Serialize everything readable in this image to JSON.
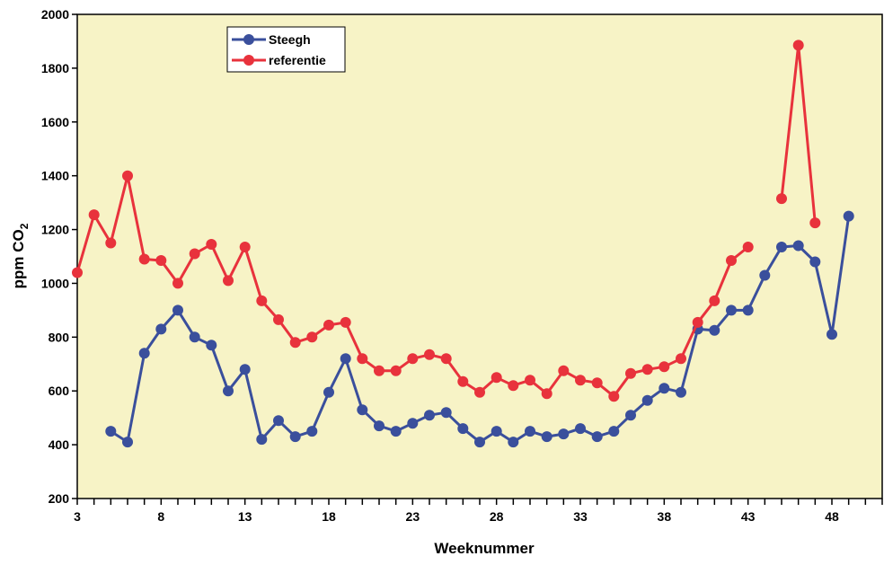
{
  "chart_data": {
    "type": "line",
    "title": "",
    "xlabel": "Weeknummer",
    "ylabel_main": "ppm CO",
    "ylabel_sub": "2",
    "xlim": [
      3,
      51
    ],
    "ylim": [
      200,
      2000
    ],
    "x_ticks": [
      3,
      8,
      13,
      18,
      23,
      28,
      33,
      38,
      43,
      48
    ],
    "x_tick_labels": [
      "3",
      "8",
      "13",
      "18",
      "23",
      "28",
      "33",
      "38",
      "43",
      "48"
    ],
    "y_ticks": [
      200,
      400,
      600,
      800,
      1000,
      1200,
      1400,
      1600,
      1800,
      2000
    ],
    "y_tick_labels": [
      "200",
      "400",
      "600",
      "800",
      "1000",
      "1200",
      "1400",
      "1600",
      "1800",
      "2000"
    ],
    "grid": false,
    "legend_position": "top-left",
    "plot_background": "#f7f3c6",
    "series": [
      {
        "name": "Steegh",
        "color": "#3a4f9c",
        "points": [
          [
            5,
            450
          ],
          [
            6,
            410
          ],
          [
            7,
            740
          ],
          [
            8,
            830
          ],
          [
            9,
            900
          ],
          [
            10,
            800
          ],
          [
            11,
            770
          ],
          [
            12,
            600
          ],
          [
            13,
            680
          ],
          [
            14,
            420
          ],
          [
            15,
            490
          ],
          [
            16,
            430
          ],
          [
            17,
            450
          ],
          [
            18,
            595
          ],
          [
            19,
            720
          ],
          [
            20,
            530
          ],
          [
            21,
            470
          ],
          [
            22,
            450
          ],
          [
            23,
            480
          ],
          [
            24,
            510
          ],
          [
            25,
            520
          ],
          [
            26,
            460
          ],
          [
            27,
            410
          ],
          [
            28,
            450
          ],
          [
            29,
            410
          ],
          [
            30,
            450
          ],
          [
            31,
            430
          ],
          [
            32,
            440
          ],
          [
            33,
            460
          ],
          [
            34,
            430
          ],
          [
            35,
            450
          ],
          [
            36,
            510
          ],
          [
            37,
            565
          ],
          [
            38,
            610
          ],
          [
            39,
            595
          ],
          [
            40,
            830
          ],
          [
            41,
            825
          ],
          [
            42,
            900
          ],
          [
            43,
            900
          ],
          [
            44,
            1030
          ],
          [
            45,
            1135
          ],
          [
            46,
            1140
          ],
          [
            47,
            1080
          ],
          [
            48,
            810
          ],
          [
            49,
            1250
          ]
        ]
      },
      {
        "name": "referentie",
        "color": "#e8323c",
        "segments": [
          [
            [
              3,
              1040
            ],
            [
              4,
              1255
            ],
            [
              5,
              1150
            ],
            [
              6,
              1400
            ],
            [
              7,
              1090
            ],
            [
              8,
              1085
            ],
            [
              9,
              1000
            ],
            [
              10,
              1110
            ],
            [
              11,
              1145
            ],
            [
              12,
              1010
            ],
            [
              13,
              1135
            ],
            [
              14,
              935
            ],
            [
              15,
              865
            ],
            [
              16,
              780
            ],
            [
              17,
              800
            ],
            [
              18,
              845
            ],
            [
              19,
              855
            ],
            [
              20,
              720
            ],
            [
              21,
              675
            ],
            [
              22,
              675
            ],
            [
              23,
              720
            ],
            [
              24,
              735
            ],
            [
              25,
              720
            ],
            [
              26,
              635
            ],
            [
              27,
              595
            ],
            [
              28,
              650
            ],
            [
              29,
              620
            ],
            [
              30,
              640
            ],
            [
              31,
              590
            ],
            [
              32,
              675
            ],
            [
              33,
              640
            ],
            [
              34,
              630
            ],
            [
              35,
              580
            ],
            [
              36,
              665
            ],
            [
              37,
              680
            ],
            [
              38,
              690
            ],
            [
              39,
              720
            ],
            [
              40,
              855
            ],
            [
              41,
              935
            ],
            [
              42,
              1085
            ],
            [
              43,
              1135
            ]
          ],
          [
            [
              45,
              1315
            ],
            [
              46,
              1885
            ],
            [
              47,
              1225
            ]
          ]
        ]
      }
    ]
  }
}
